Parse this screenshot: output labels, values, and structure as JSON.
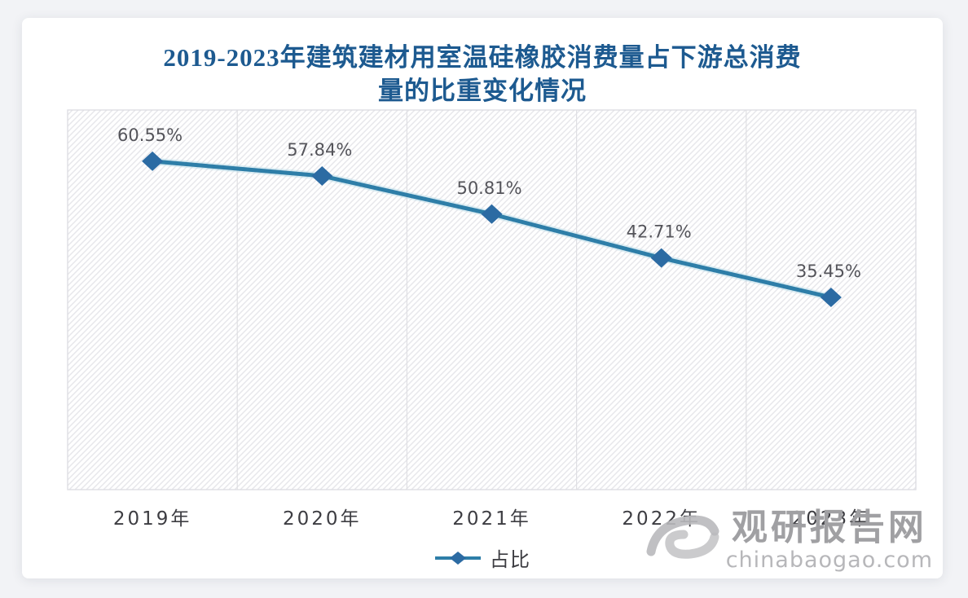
{
  "title": {
    "lines": [
      "2019-2023年建筑建材用室温硅橡胶消费量占下游总消费",
      "量的比重变化情况"
    ],
    "color": "#1d5a90"
  },
  "chart_data": {
    "type": "line",
    "title": "2019-2023年建筑建材用室温硅橡胶消费量占下游总消费量的比重变化情况",
    "categories": [
      "2019年",
      "2020年",
      "2021年",
      "2022年",
      "2023年"
    ],
    "series": [
      {
        "name": "占比",
        "values": [
          60.55,
          57.84,
          50.81,
          42.71,
          35.45
        ]
      }
    ],
    "data_labels": [
      "60.55%",
      "57.84%",
      "50.81%",
      "42.71%",
      "35.45%"
    ],
    "xlabel": "",
    "ylabel": "",
    "ylim": [
      0,
      70
    ],
    "grid": "vertical-category-separators",
    "legend_position": "bottom",
    "marker_shape": "diamond",
    "colors": {
      "line": "#2e7ea8",
      "line_halo": "#b3d9e6",
      "marker": "#2c6ba3",
      "data_label": "#54545a",
      "axis_label": "#3d3d42",
      "hatch": "#e7e7eb",
      "separator": "#dfdfe3",
      "plot_border": "#dcdce1"
    }
  },
  "legend": {
    "label": "占比"
  },
  "watermark": {
    "name": "观研报告网",
    "url": "chinabaogao.com"
  }
}
